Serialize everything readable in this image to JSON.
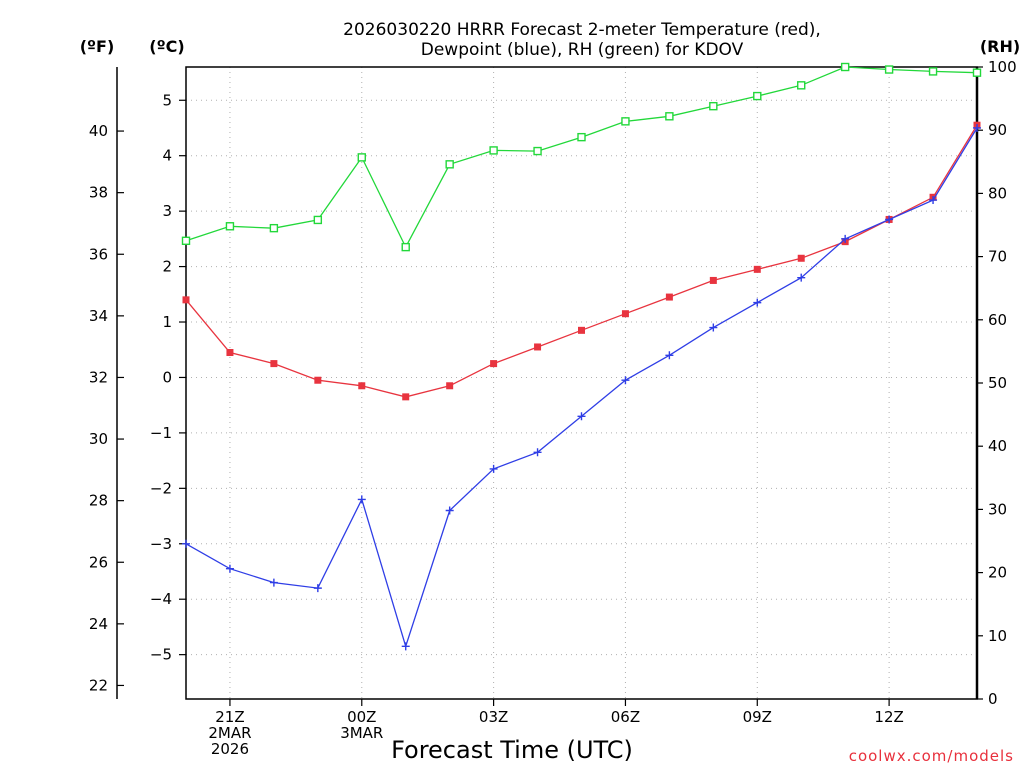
{
  "title_lines": [
    "2026030220 HRRR Forecast 2-meter Temperature (red),",
    "Dewpoint (blue), RH (green) for KDOV"
  ],
  "units": {
    "fahrenheit": "(ºF)",
    "celsius": "(ºC)",
    "rh": "(RH)"
  },
  "xlabel": "Forecast Time (UTC)",
  "credit": "coolwx.com/models",
  "chart_data": {
    "type": "line",
    "title": "2026030220 HRRR Forecast 2-meter Temperature (red), Dewpoint (blue), RH (green) for KDOV",
    "xlabel": "Forecast Time (UTC)",
    "ylabel_left_f": "(ºF)",
    "ylabel_left_c": "(ºC)",
    "ylabel_right": "(RH)",
    "x": [
      0,
      1,
      2,
      3,
      4,
      5,
      6,
      7,
      8,
      9,
      10,
      11,
      12,
      13,
      14,
      15,
      16,
      17,
      18
    ],
    "xlim": [
      0,
      18
    ],
    "ylim_c": [
      -5.8,
      5.6
    ],
    "ylim_f": [
      21.56,
      42.08
    ],
    "ylim_rh": [
      0,
      100
    ],
    "grid": true,
    "x_ticks": [
      {
        "x": 1,
        "lines": [
          "21Z",
          "2MAR",
          "2026"
        ]
      },
      {
        "x": 4,
        "lines": [
          "00Z",
          "3MAR"
        ]
      },
      {
        "x": 7,
        "lines": [
          "03Z"
        ]
      },
      {
        "x": 10,
        "lines": [
          "06Z"
        ]
      },
      {
        "x": 13,
        "lines": [
          "09Z"
        ]
      },
      {
        "x": 16,
        "lines": [
          "12Z"
        ]
      }
    ],
    "y_ticks_c": [
      5,
      4,
      3,
      2,
      1,
      0,
      -1,
      -2,
      -3,
      -4,
      -5
    ],
    "y_ticks_f": [
      40,
      38,
      36,
      34,
      32,
      30,
      28,
      26,
      24,
      22
    ],
    "y_ticks_rh": [
      100,
      90,
      80,
      70,
      60,
      50,
      40,
      30,
      20,
      10,
      0
    ],
    "series": [
      {
        "name": "Temperature",
        "axis": "celsius",
        "color": "#e8343f",
        "marker": "filled-square",
        "values": [
          1.4,
          0.45,
          0.25,
          -0.05,
          -0.15,
          -0.35,
          -0.15,
          0.25,
          0.55,
          0.85,
          1.15,
          1.45,
          1.75,
          1.95,
          2.15,
          2.45,
          2.85,
          3.25,
          4.55
        ]
      },
      {
        "name": "Dewpoint",
        "axis": "celsius",
        "color": "#2f3ee6",
        "marker": "plus",
        "values": [
          -3.0,
          -3.45,
          -3.7,
          -3.8,
          -2.2,
          -4.85,
          -2.4,
          -1.65,
          -1.35,
          -0.7,
          -0.05,
          0.4,
          0.9,
          1.35,
          1.8,
          2.5,
          2.85,
          3.2,
          4.5
        ]
      },
      {
        "name": "RH",
        "axis": "rh",
        "color": "#22d83a",
        "marker": "open-square",
        "values": [
          72.5,
          74.8,
          74.5,
          75.8,
          85.7,
          71.5,
          84.6,
          86.8,
          86.7,
          88.9,
          91.4,
          92.2,
          93.8,
          95.4,
          97.1,
          100.0,
          99.6,
          99.3,
          99.1
        ]
      }
    ]
  }
}
